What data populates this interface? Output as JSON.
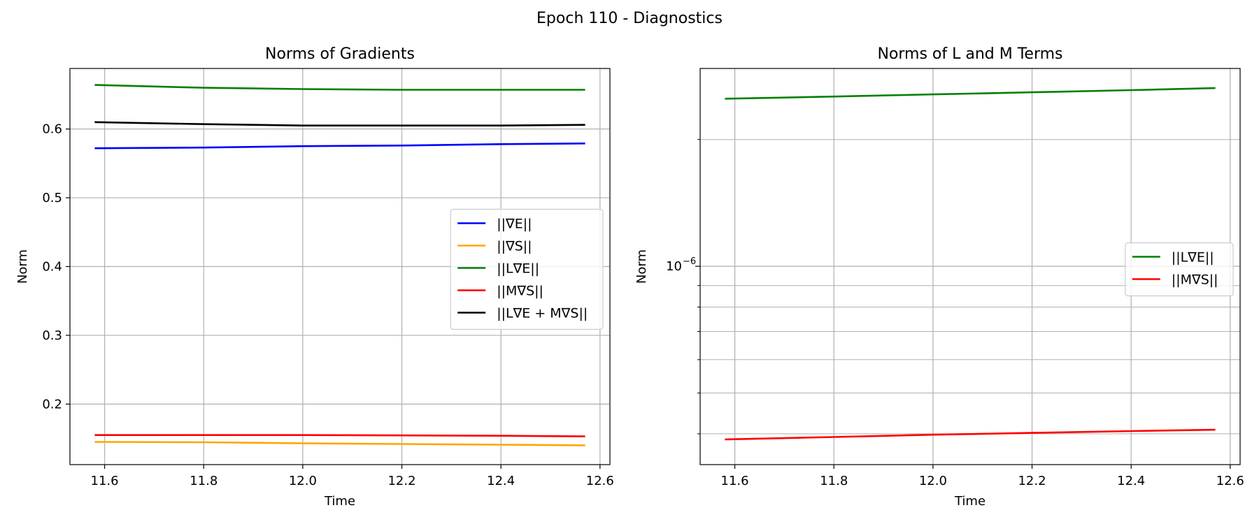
{
  "figure_title": "Epoch 110 - Diagnostics",
  "chart_data": [
    {
      "type": "line",
      "title": "Norms of Gradients",
      "xlabel": "Time",
      "ylabel": "Norm",
      "xlim": [
        11.53,
        12.62
      ],
      "ylim": [
        0.112,
        0.688
      ],
      "xticks": [
        11.6,
        11.8,
        12.0,
        12.2,
        12.4,
        12.6
      ],
      "xtick_labels": [
        "11.6",
        "11.8",
        "12.0",
        "12.2",
        "12.4",
        "12.6"
      ],
      "yticks": [
        0.2,
        0.3,
        0.4,
        0.5,
        0.6
      ],
      "ytick_labels": [
        "0.2",
        "0.3",
        "0.4",
        "0.5",
        "0.6"
      ],
      "grid": true,
      "legend_position": "center-right",
      "x": [
        11.58,
        11.8,
        12.0,
        12.2,
        12.4,
        12.57
      ],
      "series": [
        {
          "name": "||∇E||",
          "color": "#0000ff",
          "values": [
            0.572,
            0.573,
            0.575,
            0.576,
            0.578,
            0.579
          ]
        },
        {
          "name": "||∇S||",
          "color": "#ffa500",
          "values": [
            0.145,
            0.1445,
            0.143,
            0.142,
            0.141,
            0.14
          ]
        },
        {
          "name": "||L∇E||",
          "color": "#008000",
          "values": [
            0.664,
            0.66,
            0.658,
            0.657,
            0.657,
            0.657
          ]
        },
        {
          "name": "||M∇S||",
          "color": "#ff0000",
          "values": [
            0.155,
            0.155,
            0.155,
            0.1545,
            0.154,
            0.153
          ]
        },
        {
          "name": "||L∇E + M∇S||",
          "color": "#000000",
          "values": [
            0.61,
            0.607,
            0.605,
            0.605,
            0.605,
            0.606
          ]
        }
      ]
    },
    {
      "type": "line",
      "title": "Norms of L and M Terms",
      "xlabel": "Time",
      "ylabel": "Norm",
      "yscale": "log",
      "xlim": [
        11.53,
        12.62
      ],
      "ylim": [
        3.38e-07,
        2.95e-06
      ],
      "xticks": [
        11.6,
        11.8,
        12.0,
        12.2,
        12.4,
        12.6
      ],
      "xtick_labels": [
        "11.6",
        "11.8",
        "12.0",
        "12.2",
        "12.4",
        "12.6"
      ],
      "yticks_major": [
        1e-06
      ],
      "ytick_major_labels": {
        "base": "10",
        "exponent": "−6"
      },
      "yticks_minor": [
        4e-07,
        5e-07,
        6e-07,
        7e-07,
        8e-07,
        9e-07,
        2e-06
      ],
      "grid": true,
      "legend_position": "center-right",
      "x": [
        11.58,
        11.8,
        12.0,
        12.2,
        12.4,
        12.57
      ],
      "series": [
        {
          "name": "||L∇E||",
          "color": "#008000",
          "values": [
            2.5e-06,
            2.53e-06,
            2.56e-06,
            2.59e-06,
            2.62e-06,
            2.65e-06
          ]
        },
        {
          "name": "||M∇S||",
          "color": "#ff0000",
          "values": [
            3.88e-07,
            3.93e-07,
            3.98e-07,
            4.02e-07,
            4.06e-07,
            4.09e-07
          ]
        }
      ]
    }
  ]
}
